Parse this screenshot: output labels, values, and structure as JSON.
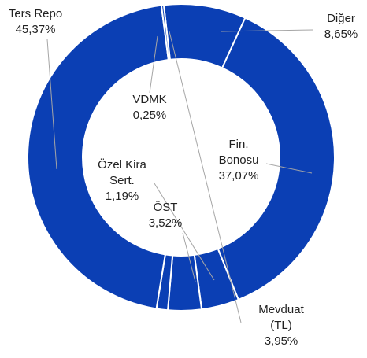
{
  "chart_data": {
    "type": "pie",
    "donut": true,
    "categories": [
      "Diğer",
      "Fin. Bonosu",
      "Mevduat (TL)",
      "ÖST",
      "Özel Kira Sert.",
      "Ters Repo",
      "VDMK"
    ],
    "values": [
      8.65,
      37.07,
      3.95,
      3.52,
      1.19,
      45.37,
      0.25
    ],
    "value_labels": [
      "8,65%",
      "37,07%",
      "3,95%",
      "3,52%",
      "1,19%",
      "45,37%",
      "0,25%"
    ],
    "color": "#0b3fb4"
  }
}
